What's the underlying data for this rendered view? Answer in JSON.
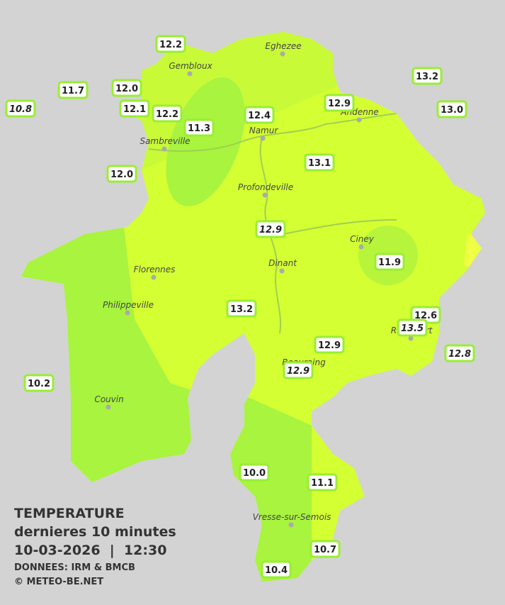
{
  "legend": {
    "title": "TEMPERATURE",
    "subtitle": "dernieres 10 minutes",
    "datetime": "10-03-2026  |  12:30",
    "source": "DONNEES: IRM & BMCB",
    "copyright": "© METEO-BE.NET"
  },
  "cities": [
    "Eghezee",
    "Gembloux",
    "Andenne",
    "Namur",
    "Sambreville",
    "Profondeville",
    "Ciney",
    "Dinant",
    "Florennes",
    "Philippeville",
    "Rochefort",
    "Beauraing",
    "Couvin",
    "Vresse-sur-Semois"
  ],
  "stations": [
    {
      "label": "12.2",
      "italic": false
    },
    {
      "label": "11.7",
      "italic": false
    },
    {
      "label": "12.0",
      "italic": false
    },
    {
      "label": "10.8",
      "italic": true
    },
    {
      "label": "12.1",
      "italic": false
    },
    {
      "label": "12.2",
      "italic": false
    },
    {
      "label": "11.3",
      "italic": false
    },
    {
      "label": "12.4",
      "italic": false
    },
    {
      "label": "12.9",
      "italic": false
    },
    {
      "label": "13.2",
      "italic": false
    },
    {
      "label": "13.0",
      "italic": false
    },
    {
      "label": "12.0",
      "italic": false
    },
    {
      "label": "13.1",
      "italic": false
    },
    {
      "label": "12.9",
      "italic": true
    },
    {
      "label": "11.9",
      "italic": false
    },
    {
      "label": "13.2",
      "italic": false
    },
    {
      "label": "12.6",
      "italic": false
    },
    {
      "label": "13.5",
      "italic": true
    },
    {
      "label": "12.9",
      "italic": false
    },
    {
      "label": "12.9",
      "italic": true
    },
    {
      "label": "12.8",
      "italic": true
    },
    {
      "label": "10.2",
      "italic": false
    },
    {
      "label": "10.0",
      "italic": false
    },
    {
      "label": "11.1",
      "italic": false
    },
    {
      "label": "10.7",
      "italic": false
    },
    {
      "label": "10.4",
      "italic": false
    }
  ]
}
